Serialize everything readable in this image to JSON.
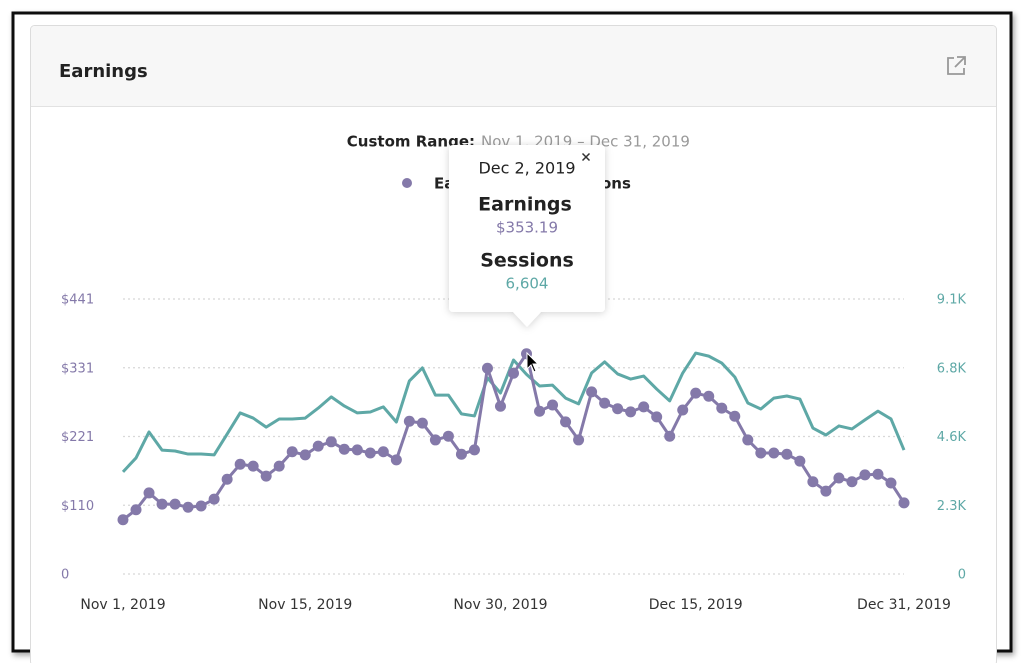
{
  "header": {
    "title": "Earnings"
  },
  "chart_data": {
    "type": "line",
    "subtitle_label": "Custom Range:",
    "subtitle": "Nov 1, 2019 – Dec 31, 2019",
    "categories": [
      "Nov 1, 2019",
      null,
      null,
      null,
      null,
      null,
      null,
      null,
      null,
      null,
      null,
      null,
      null,
      null,
      "Nov 15, 2019",
      null,
      null,
      null,
      null,
      null,
      null,
      null,
      null,
      null,
      null,
      null,
      null,
      null,
      null,
      "Nov 30, 2019",
      null,
      null,
      null,
      null,
      null,
      null,
      null,
      null,
      null,
      null,
      null,
      null,
      null,
      null,
      "Dec 15, 2019",
      null,
      null,
      null,
      null,
      null,
      null,
      null,
      null,
      null,
      null,
      null,
      null,
      null,
      null,
      null,
      "Dec 31, 2019"
    ],
    "series": [
      {
        "name": "Earnings",
        "color": "#8479a9",
        "markers": true,
        "values": [
          87,
          103,
          130,
          112,
          112,
          107,
          109,
          120,
          152,
          176,
          173,
          157,
          173,
          196,
          191,
          205,
          212,
          200,
          199,
          194,
          196,
          183,
          245,
          242,
          215,
          221,
          192,
          199,
          330,
          269,
          322,
          353.19,
          261,
          271,
          244,
          215,
          292,
          274,
          265,
          260,
          268,
          252,
          221,
          263,
          290,
          285,
          266,
          253,
          215,
          194,
          194,
          192,
          181,
          148,
          133,
          154,
          148,
          159,
          160,
          146,
          114
        ]
      },
      {
        "name": "Sessions",
        "color": "#5ea8a6",
        "axis": "y2",
        "markers": false,
        "values": [
          3380,
          3840,
          4700,
          4100,
          4070,
          3970,
          3970,
          3940,
          4630,
          5330,
          5160,
          4860,
          5130,
          5130,
          5160,
          5490,
          5860,
          5560,
          5330,
          5360,
          5530,
          5030,
          6390,
          6820,
          5920,
          5920,
          5300,
          5230,
          6490,
          5990,
          7080,
          6604,
          6220,
          6250,
          5820,
          5630,
          6650,
          7020,
          6620,
          6450,
          6550,
          6120,
          5730,
          6650,
          7310,
          7210,
          6980,
          6520,
          5660,
          5460,
          5820,
          5890,
          5790,
          4830,
          4600,
          4900,
          4800,
          5100,
          5390,
          5130,
          4100
        ]
      }
    ],
    "ylim": [
      0,
      441
    ],
    "yticks": [
      0,
      {
        "value": 110.25,
        "label": "$110"
      },
      {
        "value": 220.5,
        "label": "$221"
      },
      {
        "value": 330.75,
        "label": "$331"
      },
      {
        "value": 441,
        "label": "$441"
      }
    ],
    "y2lim": [
      0,
      9100
    ],
    "y2ticks": [
      0,
      {
        "value": 2275,
        "label": "2.3K"
      },
      {
        "value": 4550,
        "label": "4.6K"
      },
      {
        "value": 6825,
        "label": "6.8K"
      },
      {
        "value": 9100,
        "label": "9.1K"
      }
    ],
    "grid": true,
    "legend": "top",
    "tooltip": {
      "date": "Dec 2, 2019",
      "value_labels": [
        "$353.19",
        "6,604"
      ]
    }
  }
}
